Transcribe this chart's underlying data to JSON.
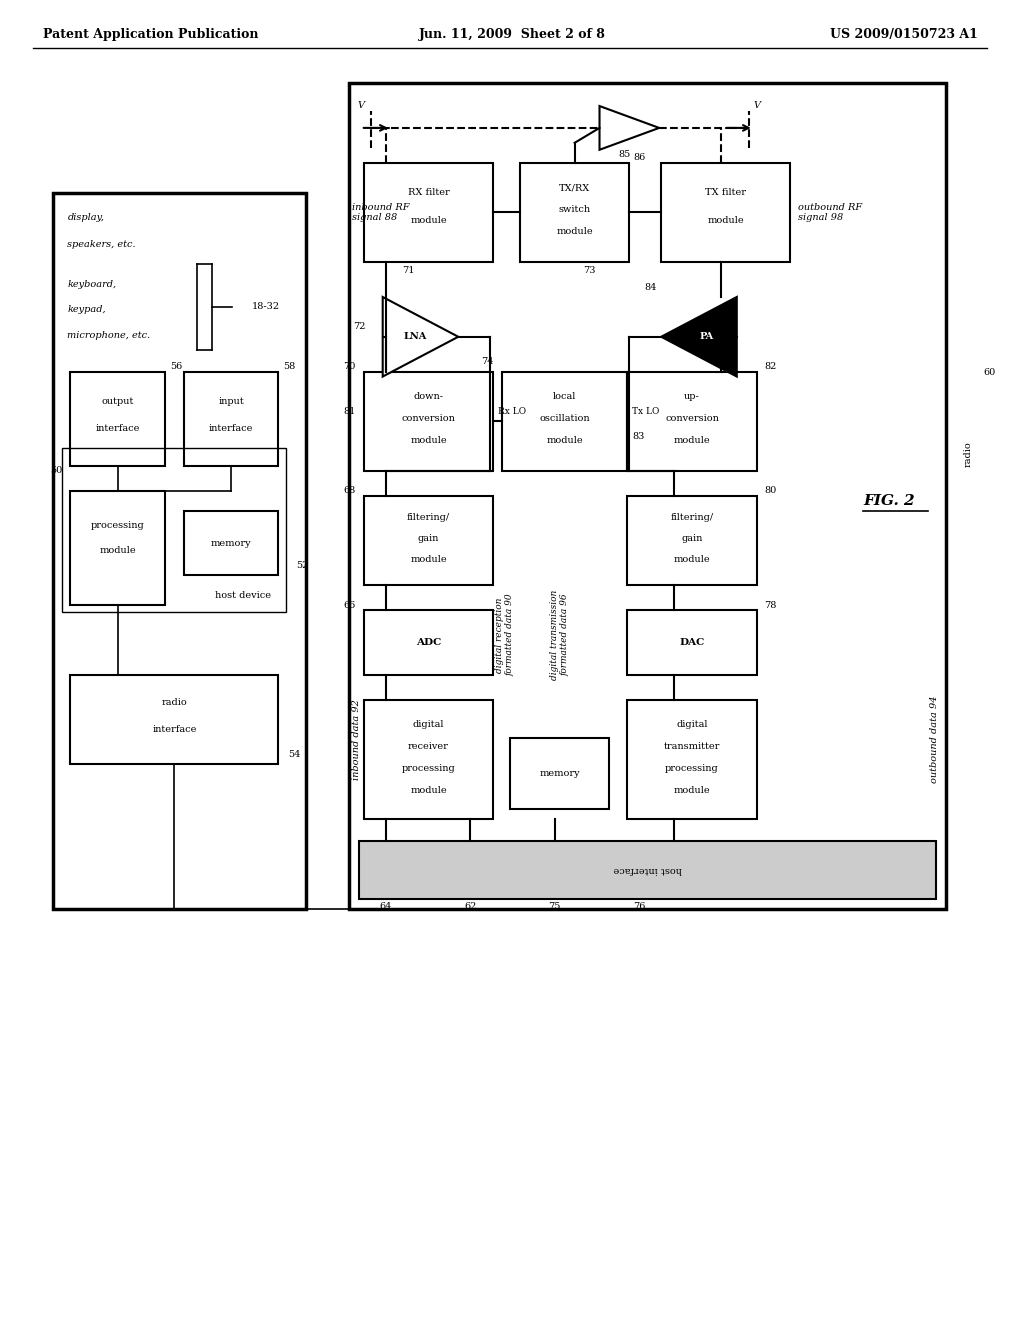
{
  "title_left": "Patent Application Publication",
  "title_center": "Jun. 11, 2009  Sheet 2 of 8",
  "title_right": "US 2009/0150723 A1",
  "fig_label": "FIG. 2",
  "background": "#ffffff",
  "line_color": "#000000",
  "box_color": "#ffffff",
  "text_color": "#000000"
}
